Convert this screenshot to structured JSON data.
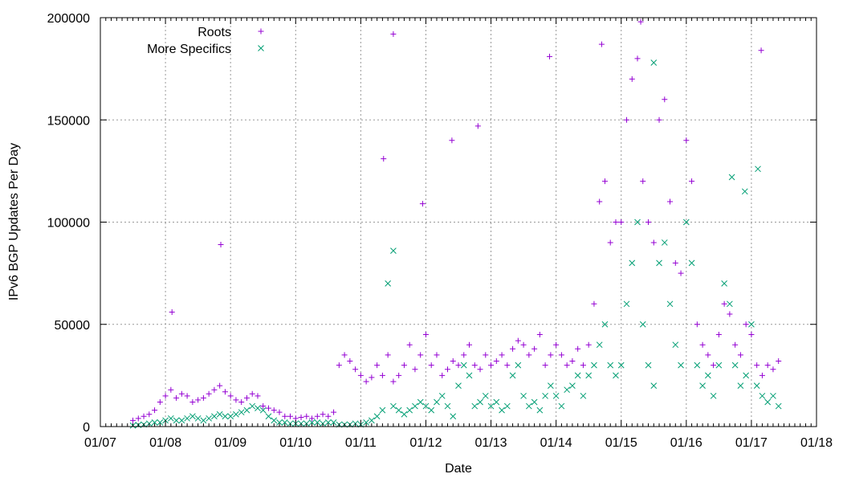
{
  "chart_data": {
    "type": "scatter",
    "title": "",
    "xlabel": "Date",
    "ylabel": "IPv6 BGP Updates Per Day",
    "xlim": [
      2007,
      2018
    ],
    "ylim": [
      0,
      200000
    ],
    "grid": true,
    "legend_placement": "top-left",
    "x_tick_labels": [
      "01/07",
      "01/08",
      "01/09",
      "01/10",
      "01/11",
      "01/12",
      "01/13",
      "01/14",
      "01/15",
      "01/16",
      "01/17",
      "01/18"
    ],
    "y_ticks": [
      0,
      50000,
      100000,
      150000,
      200000
    ],
    "y_tick_labels": [
      "0",
      "50000",
      "100000",
      "150000",
      "200000"
    ],
    "x_start": 2007.5,
    "x_step_months": 1,
    "series": [
      {
        "name": "Roots",
        "marker": "plus",
        "color": "#9400d3",
        "values": [
          3000,
          4000,
          5000,
          6000,
          8000,
          12000,
          15000,
          18000,
          14000,
          16000,
          15000,
          12000,
          13000,
          14000,
          16000,
          18000,
          20000,
          17000,
          15000,
          13000,
          12000,
          14000,
          16000,
          15000,
          10000,
          9000,
          8000,
          7000,
          5000,
          5000,
          4000,
          4500,
          5000,
          4000,
          5000,
          6000,
          5000,
          7000,
          30000,
          35000,
          32000,
          28000,
          25000,
          22000,
          24000,
          30000,
          25000,
          35000,
          22000,
          25000,
          30000,
          40000,
          28000,
          35000,
          45000,
          30000,
          35000,
          25000,
          28000,
          32000,
          30000,
          35000,
          40000,
          30000,
          28000,
          35000,
          30000,
          32000,
          35000,
          30000,
          38000,
          42000,
          40000,
          35000,
          38000,
          45000,
          30000,
          35000,
          40000,
          35000,
          30000,
          32000,
          38000,
          30000,
          40000,
          60000,
          110000,
          120000,
          90000,
          100000,
          100000,
          150000,
          170000,
          180000,
          120000,
          100000,
          90000,
          150000,
          160000,
          110000,
          80000,
          75000,
          140000,
          120000,
          50000,
          40000,
          35000,
          30000,
          45000,
          60000,
          55000,
          40000,
          35000,
          50000,
          45000,
          30000,
          25000,
          30000,
          28000,
          32000
        ],
        "outliers": [
          [
            2008.85,
            89000
          ],
          [
            2011.5,
            192000
          ],
          [
            2012.8,
            147000
          ],
          [
            2013.9,
            181000
          ],
          [
            2015.3,
            198000
          ],
          [
            2017.15,
            184000
          ],
          [
            2011.35,
            131000
          ],
          [
            2012.4,
            140000
          ],
          [
            2008.1,
            56000
          ],
          [
            2011.95,
            109000
          ],
          [
            2014.7,
            187000
          ]
        ]
      },
      {
        "name": "More Specifics",
        "marker": "cross",
        "color": "#009e73",
        "values": [
          500,
          800,
          1000,
          1500,
          2000,
          2000,
          3000,
          4000,
          3000,
          3000,
          4000,
          5000,
          4000,
          3000,
          4000,
          5000,
          6000,
          5000,
          5000,
          6000,
          7000,
          8000,
          10000,
          9000,
          8000,
          5000,
          3000,
          2000,
          2000,
          1500,
          1500,
          1500,
          1500,
          2000,
          2000,
          1500,
          2000,
          2000,
          1000,
          1000,
          1000,
          1500,
          1000,
          2000,
          3000,
          5000,
          8000,
          70000,
          10000,
          8000,
          6000,
          8000,
          10000,
          12000,
          10000,
          8000,
          12000,
          15000,
          10000,
          5000,
          20000,
          30000,
          25000,
          10000,
          12000,
          15000,
          10000,
          12000,
          8000,
          10000,
          25000,
          30000,
          15000,
          10000,
          12000,
          8000,
          15000,
          20000,
          15000,
          10000,
          18000,
          20000,
          25000,
          15000,
          25000,
          30000,
          40000,
          50000,
          30000,
          25000,
          30000,
          60000,
          80000,
          100000,
          50000,
          30000,
          20000,
          80000,
          90000,
          60000,
          40000,
          30000,
          100000,
          80000,
          30000,
          20000,
          25000,
          15000,
          30000,
          70000,
          60000,
          30000,
          20000,
          25000,
          50000,
          20000,
          15000,
          12000,
          15000,
          10000
        ],
        "outliers": [
          [
            2016.7,
            122000
          ],
          [
            2017.1,
            126000
          ],
          [
            2015.5,
            178000
          ],
          [
            2011.5,
            86000
          ],
          [
            2016.9,
            115000
          ]
        ]
      }
    ]
  }
}
